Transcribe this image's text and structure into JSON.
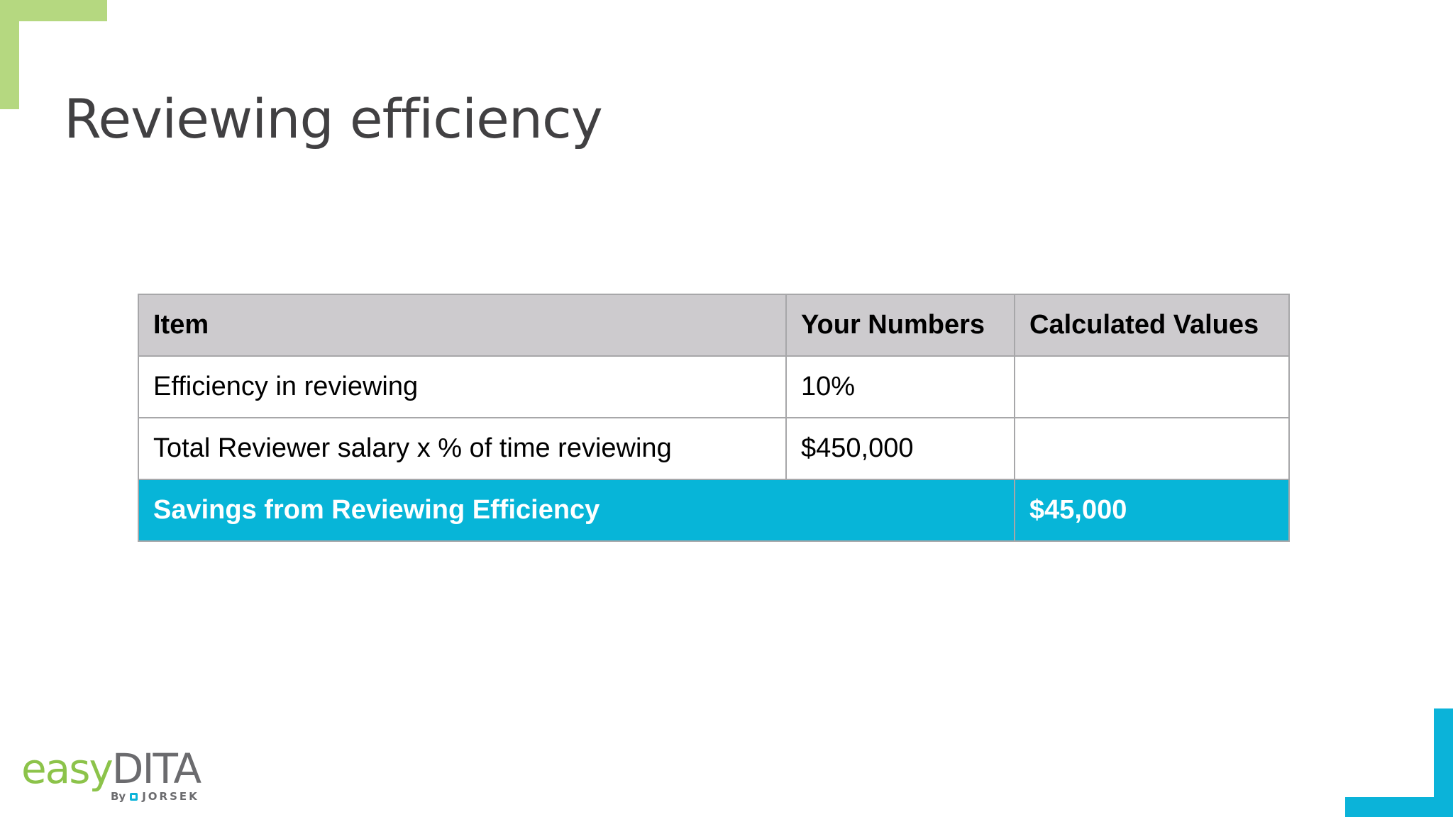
{
  "slide": {
    "title": "Reviewing efficiency"
  },
  "table": {
    "headers": [
      "Item",
      "Your Numbers",
      "Calculated Values"
    ],
    "rows": [
      {
        "item": "Efficiency in reviewing",
        "your_numbers": "10%",
        "calculated": ""
      },
      {
        "item": "Total Reviewer salary x % of time reviewing",
        "your_numbers": "$450,000",
        "calculated": ""
      }
    ],
    "total": {
      "label": "Savings from Reviewing Efficiency",
      "value": "$45,000"
    }
  },
  "logo": {
    "easy": "easy",
    "dita": "DITA",
    "by": "By",
    "company": "JORSEK"
  },
  "colors": {
    "accent_green": "#b5d880",
    "accent_blue": "#0bb3d9",
    "header_gray": "#cdcbce",
    "total_row": "#07b5d8"
  }
}
